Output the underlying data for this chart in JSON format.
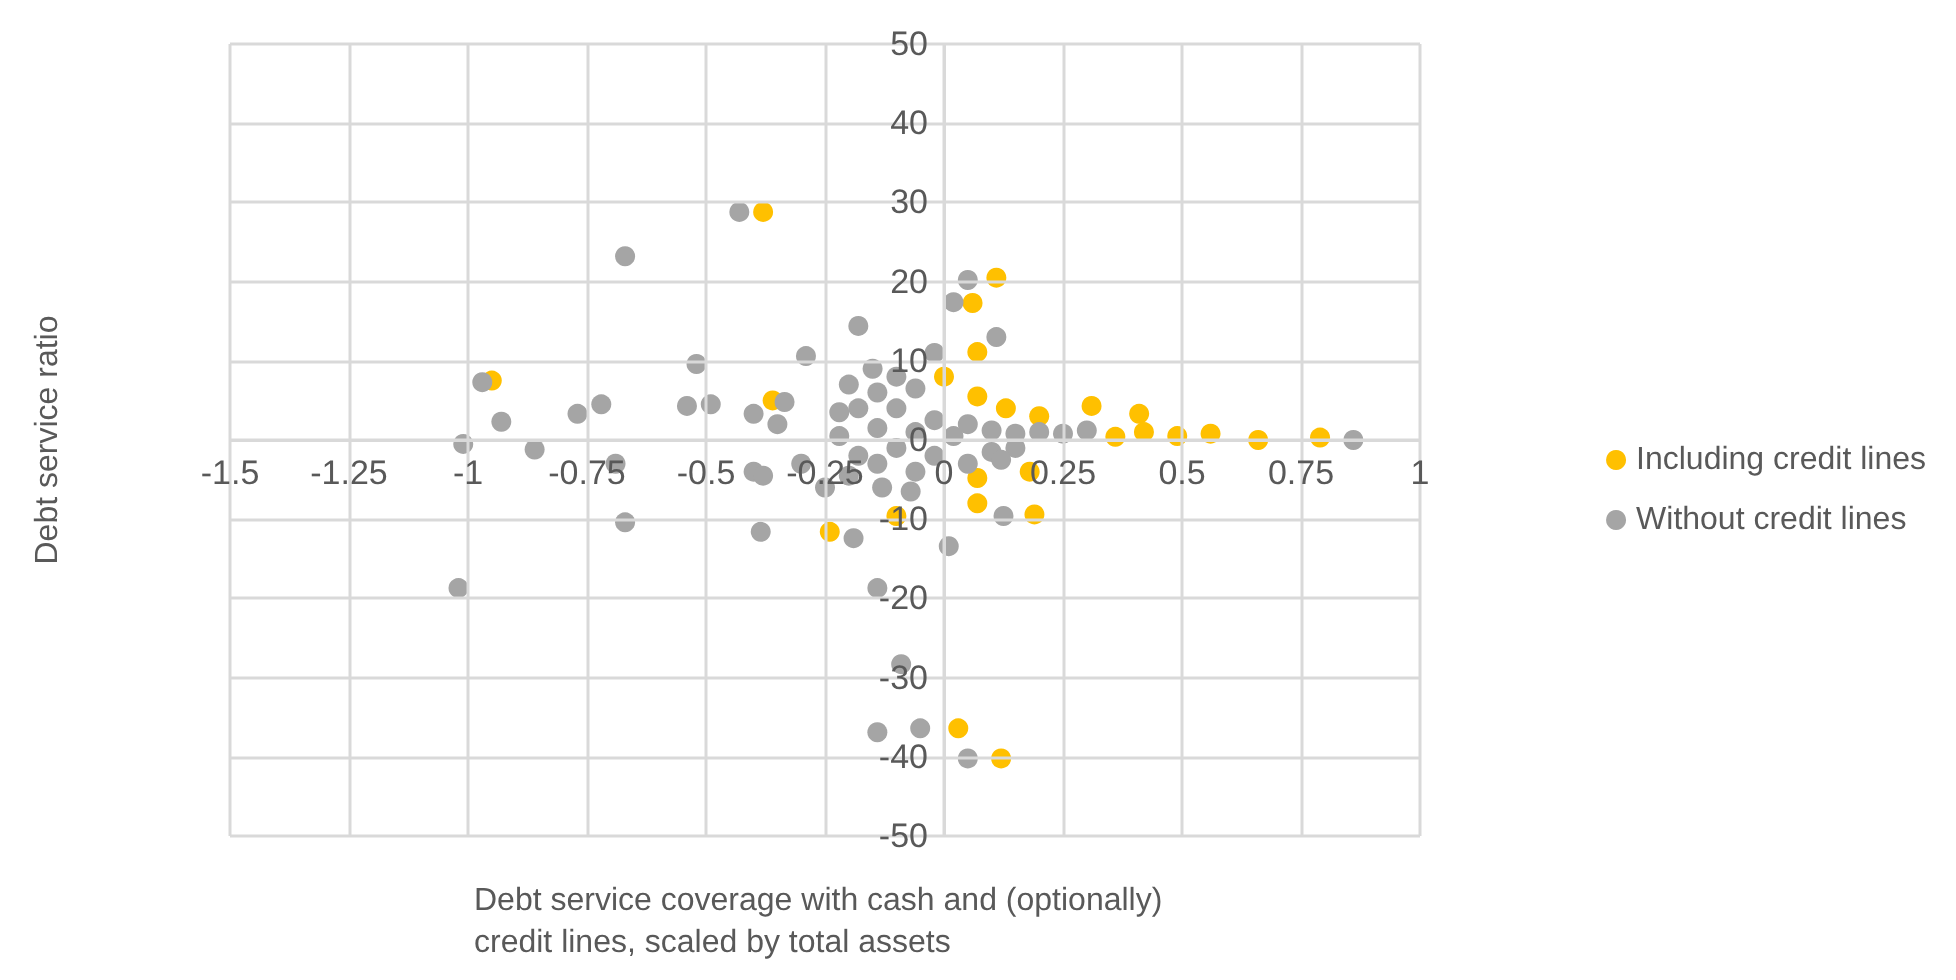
{
  "chart_data": {
    "type": "scatter",
    "xlabel": "Debt service coverage with cash and (optionally) credit lines, scaled by total assets",
    "ylabel": "Debt service ratio",
    "xlim": [
      -1.5,
      1
    ],
    "xticks": [
      -1.5,
      -1.25,
      -1,
      -0.75,
      -0.5,
      -0.25,
      0,
      0.25,
      0.5,
      0.75,
      1
    ],
    "ylim": [
      -50,
      50
    ],
    "yticks": [
      -50,
      -40,
      -30,
      -20,
      -10,
      0,
      10,
      20,
      30,
      40,
      50
    ],
    "grid": true,
    "legend": "right",
    "marker": "circle",
    "series": [
      {
        "name": "Including credit lines",
        "color": "#ffc000",
        "x": [
          -0.38,
          -0.95,
          -0.36,
          0.11,
          0.06,
          0.07,
          0.07,
          0.13,
          0.2,
          0.31,
          0.41,
          0.56,
          0.66,
          0.79,
          0.49,
          0.42,
          0.36,
          0.07,
          0.07,
          0.18,
          0.19,
          0,
          -0.1,
          -0.24,
          0.03,
          0.12
        ],
        "values": [
          28.8,
          7.5,
          5,
          20.5,
          17.3,
          11.1,
          5.5,
          4,
          3,
          4.3,
          3.3,
          0.8,
          0,
          0.3,
          0.5,
          1,
          0.4,
          -4.8,
          -8,
          -4,
          -9.4,
          8,
          -9.6,
          -11.6,
          -36.4,
          -40.2
        ]
      },
      {
        "name": "Without credit lines",
        "color": "#a5a5a5",
        "x": [
          -0.43,
          -0.67,
          -0.97,
          -1.01,
          -0.93,
          -0.86,
          -0.77,
          -0.72,
          -0.69,
          -0.67,
          -1.02,
          -0.52,
          -0.54,
          -0.49,
          -0.4,
          -0.385,
          -0.4,
          -0.38,
          -0.335,
          -0.35,
          -0.29,
          -0.3,
          -0.25,
          -0.18,
          0.05,
          0.11,
          0.02,
          -0.02,
          -0.14,
          -0.09,
          -0.14,
          -0.05,
          0.05,
          0.01,
          -0.19,
          0.86,
          0.3,
          0.25,
          0.2,
          0.15,
          0.1,
          0.05,
          0.1,
          0.15,
          0.05,
          0.125,
          0.12,
          -0.22,
          -0.18,
          -0.14,
          -0.1,
          -0.14,
          -0.1,
          -0.06,
          -0.02,
          0.02,
          -0.18,
          -0.14,
          -0.1,
          -0.06,
          -0.02,
          -0.22,
          -0.2,
          -0.06,
          -0.13,
          -0.2,
          -0.15,
          -0.07
        ],
        "values": [
          28.8,
          23.2,
          7.3,
          -0.5,
          2.3,
          -1.2,
          3.3,
          4.5,
          -3,
          -10.4,
          -18.7,
          9.6,
          4.3,
          4.5,
          3.3,
          -11.6,
          -4,
          -4.5,
          4.8,
          2,
          10.6,
          -3,
          -6,
          14.4,
          20.2,
          13,
          17.4,
          11,
          -18.7,
          -28.3,
          -36.9,
          -36.4,
          -40.2,
          -13.4,
          -12.4,
          0,
          1.2,
          0.8,
          1,
          0.8,
          1.2,
          2,
          -1.5,
          -1,
          -3,
          -9.6,
          -2.5,
          0.5,
          4,
          6,
          8,
          1.5,
          4,
          1,
          2.5,
          0.5,
          -2,
          -3,
          -1,
          -4,
          -2,
          3.5,
          7,
          6.5,
          -6,
          -4.5,
          9,
          -6.5
        ]
      }
    ]
  }
}
